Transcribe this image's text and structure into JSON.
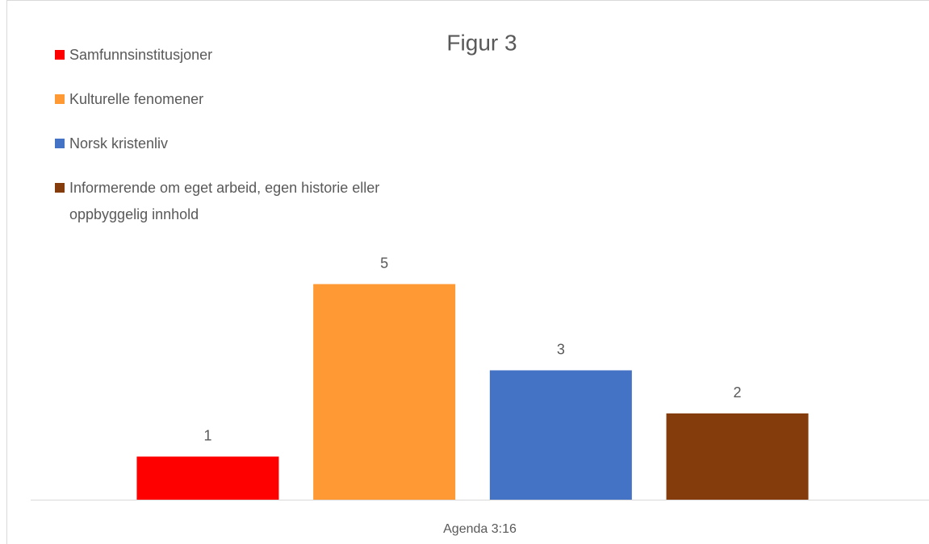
{
  "chart_data": {
    "type": "bar",
    "title": "Figur 3",
    "categories": [
      "Agenda 3:16"
    ],
    "series": [
      {
        "name": "Samfunnsinstitusjoner",
        "color": "#ff0000",
        "values": [
          1
        ]
      },
      {
        "name": "Kulturelle fenomener",
        "color": "#ff9933",
        "values": [
          5
        ]
      },
      {
        "name": "Norsk kristenliv",
        "color": "#4472c4",
        "values": [
          3
        ]
      },
      {
        "name": "Informerende om eget arbeid, egen historie eller oppbyggelig innhold",
        "color": "#843c0c",
        "values": [
          2
        ]
      }
    ],
    "ylim": [
      0,
      6
    ],
    "legend": "top-left"
  }
}
